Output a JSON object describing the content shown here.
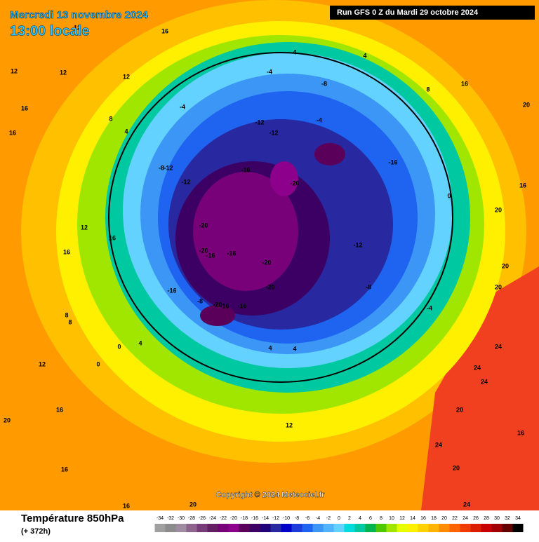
{
  "header": {
    "date": "Mercredi 13 novembre 2024",
    "time": "13:00 locale",
    "run": "Run GFS 0 Z du Mardi 29 octobre 2024"
  },
  "copyright": "Copyright © 2024 Meteociel.fr",
  "legend": {
    "title": "Température 850hPa",
    "lead": "(+ 372h)",
    "ticks": [
      -34,
      -32,
      -30,
      -28,
      -26,
      -24,
      -22,
      -20,
      -18,
      -16,
      -14,
      -12,
      -10,
      -8,
      -6,
      -4,
      -2,
      0,
      2,
      4,
      6,
      8,
      10,
      12,
      14,
      16,
      18,
      20,
      22,
      24,
      26,
      28,
      30,
      32,
      34
    ],
    "colors": [
      "#a0a0a0",
      "#8c8c8c",
      "#a08ca0",
      "#8c648c",
      "#783c78",
      "#641e64",
      "#780078",
      "#8c008c",
      "#5a005a",
      "#3c0064",
      "#1e0078",
      "#2828a0",
      "#0000c8",
      "#1e3cdc",
      "#1e64f0",
      "#3c96f5",
      "#50b4ff",
      "#64d2ff",
      "#00dcdc",
      "#00c8a0",
      "#00b450",
      "#50c800",
      "#a0e600",
      "#e6ff00",
      "#fff000",
      "#ffd200",
      "#ffb400",
      "#ff8c00",
      "#ff6400",
      "#f03c00",
      "#dc1e00",
      "#c80000",
      "#a00000",
      "#640000",
      "#000000"
    ]
  },
  "map_labels": [
    12,
    16,
    12,
    16,
    12,
    16,
    12,
    16,
    8,
    4,
    -4,
    -4,
    4,
    -8,
    -12,
    -12,
    -16,
    -20,
    -20,
    -16,
    -16,
    -12,
    -8,
    -12,
    -20,
    -16,
    -20,
    -16,
    -16,
    -20,
    -20,
    -8,
    -4,
    0,
    0,
    4,
    4,
    8,
    12,
    8,
    4,
    0,
    -4,
    -8,
    -12,
    -16,
    4,
    8,
    16,
    20,
    16,
    20,
    24,
    24,
    24,
    20,
    24,
    20,
    24,
    16,
    12,
    20,
    20,
    16,
    12,
    16,
    20,
    16,
    16,
    20
  ]
}
